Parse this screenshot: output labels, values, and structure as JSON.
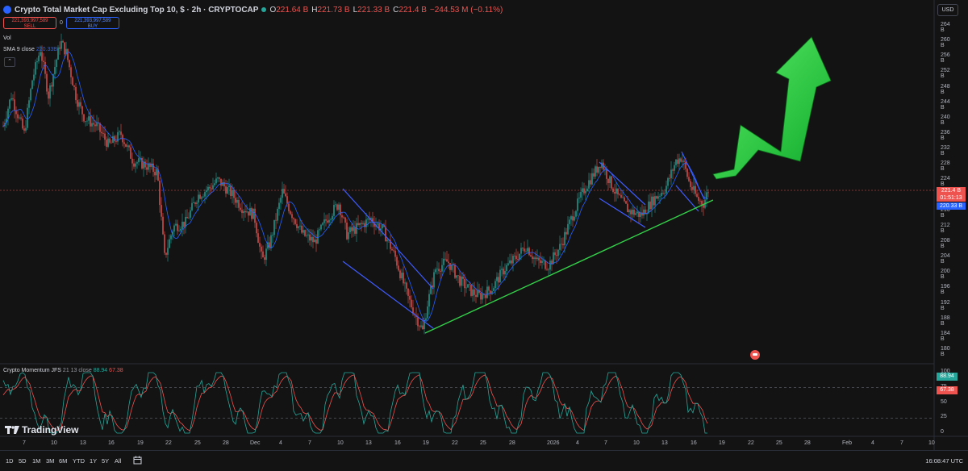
{
  "header": {
    "title": "Crypto Total Market Cap Excluding Top 10, $ · 2h · CRYPTOCAP",
    "ohlc": [
      {
        "label": "O",
        "value": "221.64 B"
      },
      {
        "label": "H",
        "value": "221.73 B"
      },
      {
        "label": "L",
        "value": "221.33 B"
      },
      {
        "label": "C",
        "value": "221.4 B"
      },
      {
        "label": "",
        "value": "−244.53 M (−0.11%)"
      }
    ],
    "sell_price": "221,393,997,589",
    "sell_label": "SELL",
    "buy_price": "221,393,997,589",
    "buy_label": "BUY",
    "spread": "0"
  },
  "indicators": {
    "vol": "Vol",
    "sma_name": "SMA 9 close",
    "sma_value": "220.33B",
    "collapse_icon": "chevron-up-icon"
  },
  "currency": "USD",
  "price_axis": [
    "264 B",
    "260 B",
    "256 B",
    "252 B",
    "248 B",
    "244 B",
    "240 B",
    "236 B",
    "232 B",
    "228 B",
    "224 B",
    "216 B",
    "212 B",
    "208 B",
    "204 B",
    "200 B",
    "196 B",
    "192 B",
    "188 B",
    "184 B",
    "180 B"
  ],
  "price_tags": {
    "last_price": "221.4 B",
    "countdown": "01:51:13",
    "sma": "220.33 B"
  },
  "oscillator": {
    "name": "Crypto Momentum JFS",
    "params": "21 13 close",
    "value1": "88.94",
    "value2": "67.38",
    "axis": [
      "100",
      "75",
      "50",
      "25",
      "0"
    ],
    "tag1": "88.94",
    "tag2": "67.38"
  },
  "time_axis": [
    "7",
    "10",
    "13",
    "16",
    "19",
    "22",
    "25",
    "28",
    "Dec",
    "4",
    "7",
    "10",
    "13",
    "16",
    "19",
    "22",
    "25",
    "28",
    "2026",
    "4",
    "7",
    "10",
    "13",
    "16",
    "19",
    "22",
    "25",
    "28",
    "Feb",
    "4",
    "7",
    "10"
  ],
  "branding": "TradingView",
  "ranges": [
    "1D",
    "5D",
    "1M",
    "3M",
    "6M",
    "YTD",
    "1Y",
    "5Y",
    "All"
  ],
  "utc_time": "16:08:47 UTC",
  "colors": {
    "background": "#131313",
    "bull": "#26a69a",
    "bear": "#ef5350",
    "sma": "#2962ff",
    "trendline_blue": "#3f5bff",
    "trendline_green": "#35d04a",
    "arrow": "#22d63a"
  },
  "chart_data": {
    "type": "line",
    "series": [
      {
        "name": "SMA 9 close",
        "x": [
          "Nov 7",
          "Nov 10",
          "Nov 13",
          "Nov 16",
          "Nov 19",
          "Nov 22",
          "Nov 25",
          "Nov 28",
          "Dec 1",
          "Dec 4",
          "Dec 7",
          "Dec 10",
          "Dec 13",
          "Dec 16",
          "Dec 19",
          "Dec 22",
          "Dec 25",
          "Dec 28",
          "Jan 1",
          "Jan 4",
          "Jan 7",
          "Jan 10",
          "Jan 13",
          "Jan 16",
          "Jan 17"
        ],
        "values": [
          238,
          255,
          246,
          236,
          228,
          210,
          219,
          222,
          208,
          219,
          211,
          216,
          211,
          204,
          190,
          200,
          196,
          201,
          201,
          214,
          226,
          220,
          227,
          222,
          220.33
        ]
      }
    ],
    "ylim": [
      178,
      266
    ],
    "ylabel": "",
    "xlabel": ""
  }
}
